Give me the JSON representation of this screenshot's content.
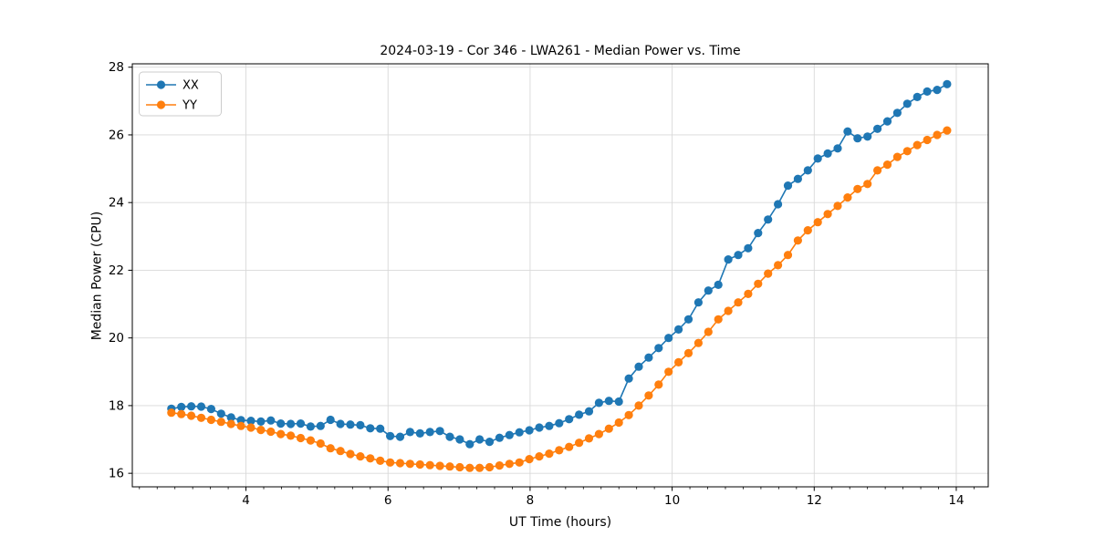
{
  "figure": {
    "background": "#ffffff",
    "grid_color": "#d9d9d9",
    "axis_color": "#000000"
  },
  "chart_data": {
    "type": "line",
    "title": "2024-03-19 - Cor 346 - LWA261 - Median Power vs. Time",
    "xlabel": "UT Time (hours)",
    "ylabel": "Median Power (CPU)",
    "xlim": [
      2.4,
      14.45
    ],
    "ylim": [
      15.6,
      28.1
    ],
    "xticks": [
      4,
      6,
      8,
      10,
      12,
      14
    ],
    "yticks": [
      16,
      18,
      20,
      22,
      24,
      26,
      28
    ],
    "minor_xtick_step": 0.25,
    "grid": true,
    "legend_position": "upper-left",
    "marker": "circle",
    "x": [
      2.95,
      3.09,
      3.23,
      3.37,
      3.51,
      3.65,
      3.79,
      3.93,
      4.07,
      4.21,
      4.35,
      4.49,
      4.63,
      4.77,
      4.91,
      5.05,
      5.19,
      5.33,
      5.47,
      5.61,
      5.75,
      5.89,
      6.03,
      6.17,
      6.31,
      6.45,
      6.59,
      6.73,
      6.87,
      7.01,
      7.15,
      7.29,
      7.43,
      7.57,
      7.71,
      7.85,
      7.99,
      8.13,
      8.27,
      8.41,
      8.55,
      8.69,
      8.83,
      8.97,
      9.11,
      9.25,
      9.39,
      9.53,
      9.67,
      9.81,
      9.95,
      10.09,
      10.23,
      10.37,
      10.51,
      10.65,
      10.79,
      10.93,
      11.07,
      11.21,
      11.35,
      11.49,
      11.63,
      11.77,
      11.91,
      12.05,
      12.19,
      12.33,
      12.47,
      12.61,
      12.75,
      12.89,
      13.03,
      13.17,
      13.31,
      13.45,
      13.59,
      13.73,
      13.87
    ],
    "series": [
      {
        "name": "XX",
        "color": "#1f77b4",
        "values": [
          17.91,
          17.96,
          17.98,
          17.97,
          17.9,
          17.76,
          17.65,
          17.57,
          17.55,
          17.53,
          17.56,
          17.47,
          17.46,
          17.47,
          17.38,
          17.4,
          17.58,
          17.46,
          17.44,
          17.42,
          17.33,
          17.32,
          17.1,
          17.08,
          17.22,
          17.18,
          17.22,
          17.25,
          17.08,
          17.0,
          16.86,
          17.0,
          16.93,
          17.05,
          17.13,
          17.21,
          17.27,
          17.35,
          17.4,
          17.48,
          17.6,
          17.73,
          17.83,
          18.08,
          18.14,
          18.12,
          18.8,
          19.15,
          19.42,
          19.7,
          20.0,
          20.25,
          20.55,
          21.05,
          21.4,
          21.57,
          22.32,
          22.45,
          22.65,
          23.1,
          23.5,
          23.95,
          24.5,
          24.7,
          24.95,
          25.3,
          25.45,
          25.6,
          26.1,
          25.9,
          25.95,
          26.18,
          26.4,
          26.65,
          26.92,
          27.12,
          27.28,
          27.33,
          27.5
        ]
      },
      {
        "name": "YY",
        "color": "#ff7f0e",
        "values": [
          17.79,
          17.75,
          17.7,
          17.64,
          17.58,
          17.52,
          17.46,
          17.4,
          17.35,
          17.28,
          17.23,
          17.16,
          17.11,
          17.04,
          16.97,
          16.88,
          16.74,
          16.66,
          16.57,
          16.5,
          16.44,
          16.37,
          16.32,
          16.3,
          16.28,
          16.26,
          16.24,
          16.22,
          16.2,
          16.18,
          16.16,
          16.16,
          16.18,
          16.23,
          16.28,
          16.32,
          16.42,
          16.5,
          16.58,
          16.68,
          16.78,
          16.9,
          17.03,
          17.16,
          17.32,
          17.5,
          17.72,
          18.0,
          18.3,
          18.62,
          19.0,
          19.28,
          19.55,
          19.85,
          20.18,
          20.55,
          20.8,
          21.05,
          21.3,
          21.6,
          21.9,
          22.15,
          22.45,
          22.88,
          23.18,
          23.42,
          23.66,
          23.9,
          24.15,
          24.4,
          24.55,
          24.95,
          25.12,
          25.35,
          25.52,
          25.7,
          25.85,
          26.0,
          26.13
        ]
      }
    ]
  }
}
